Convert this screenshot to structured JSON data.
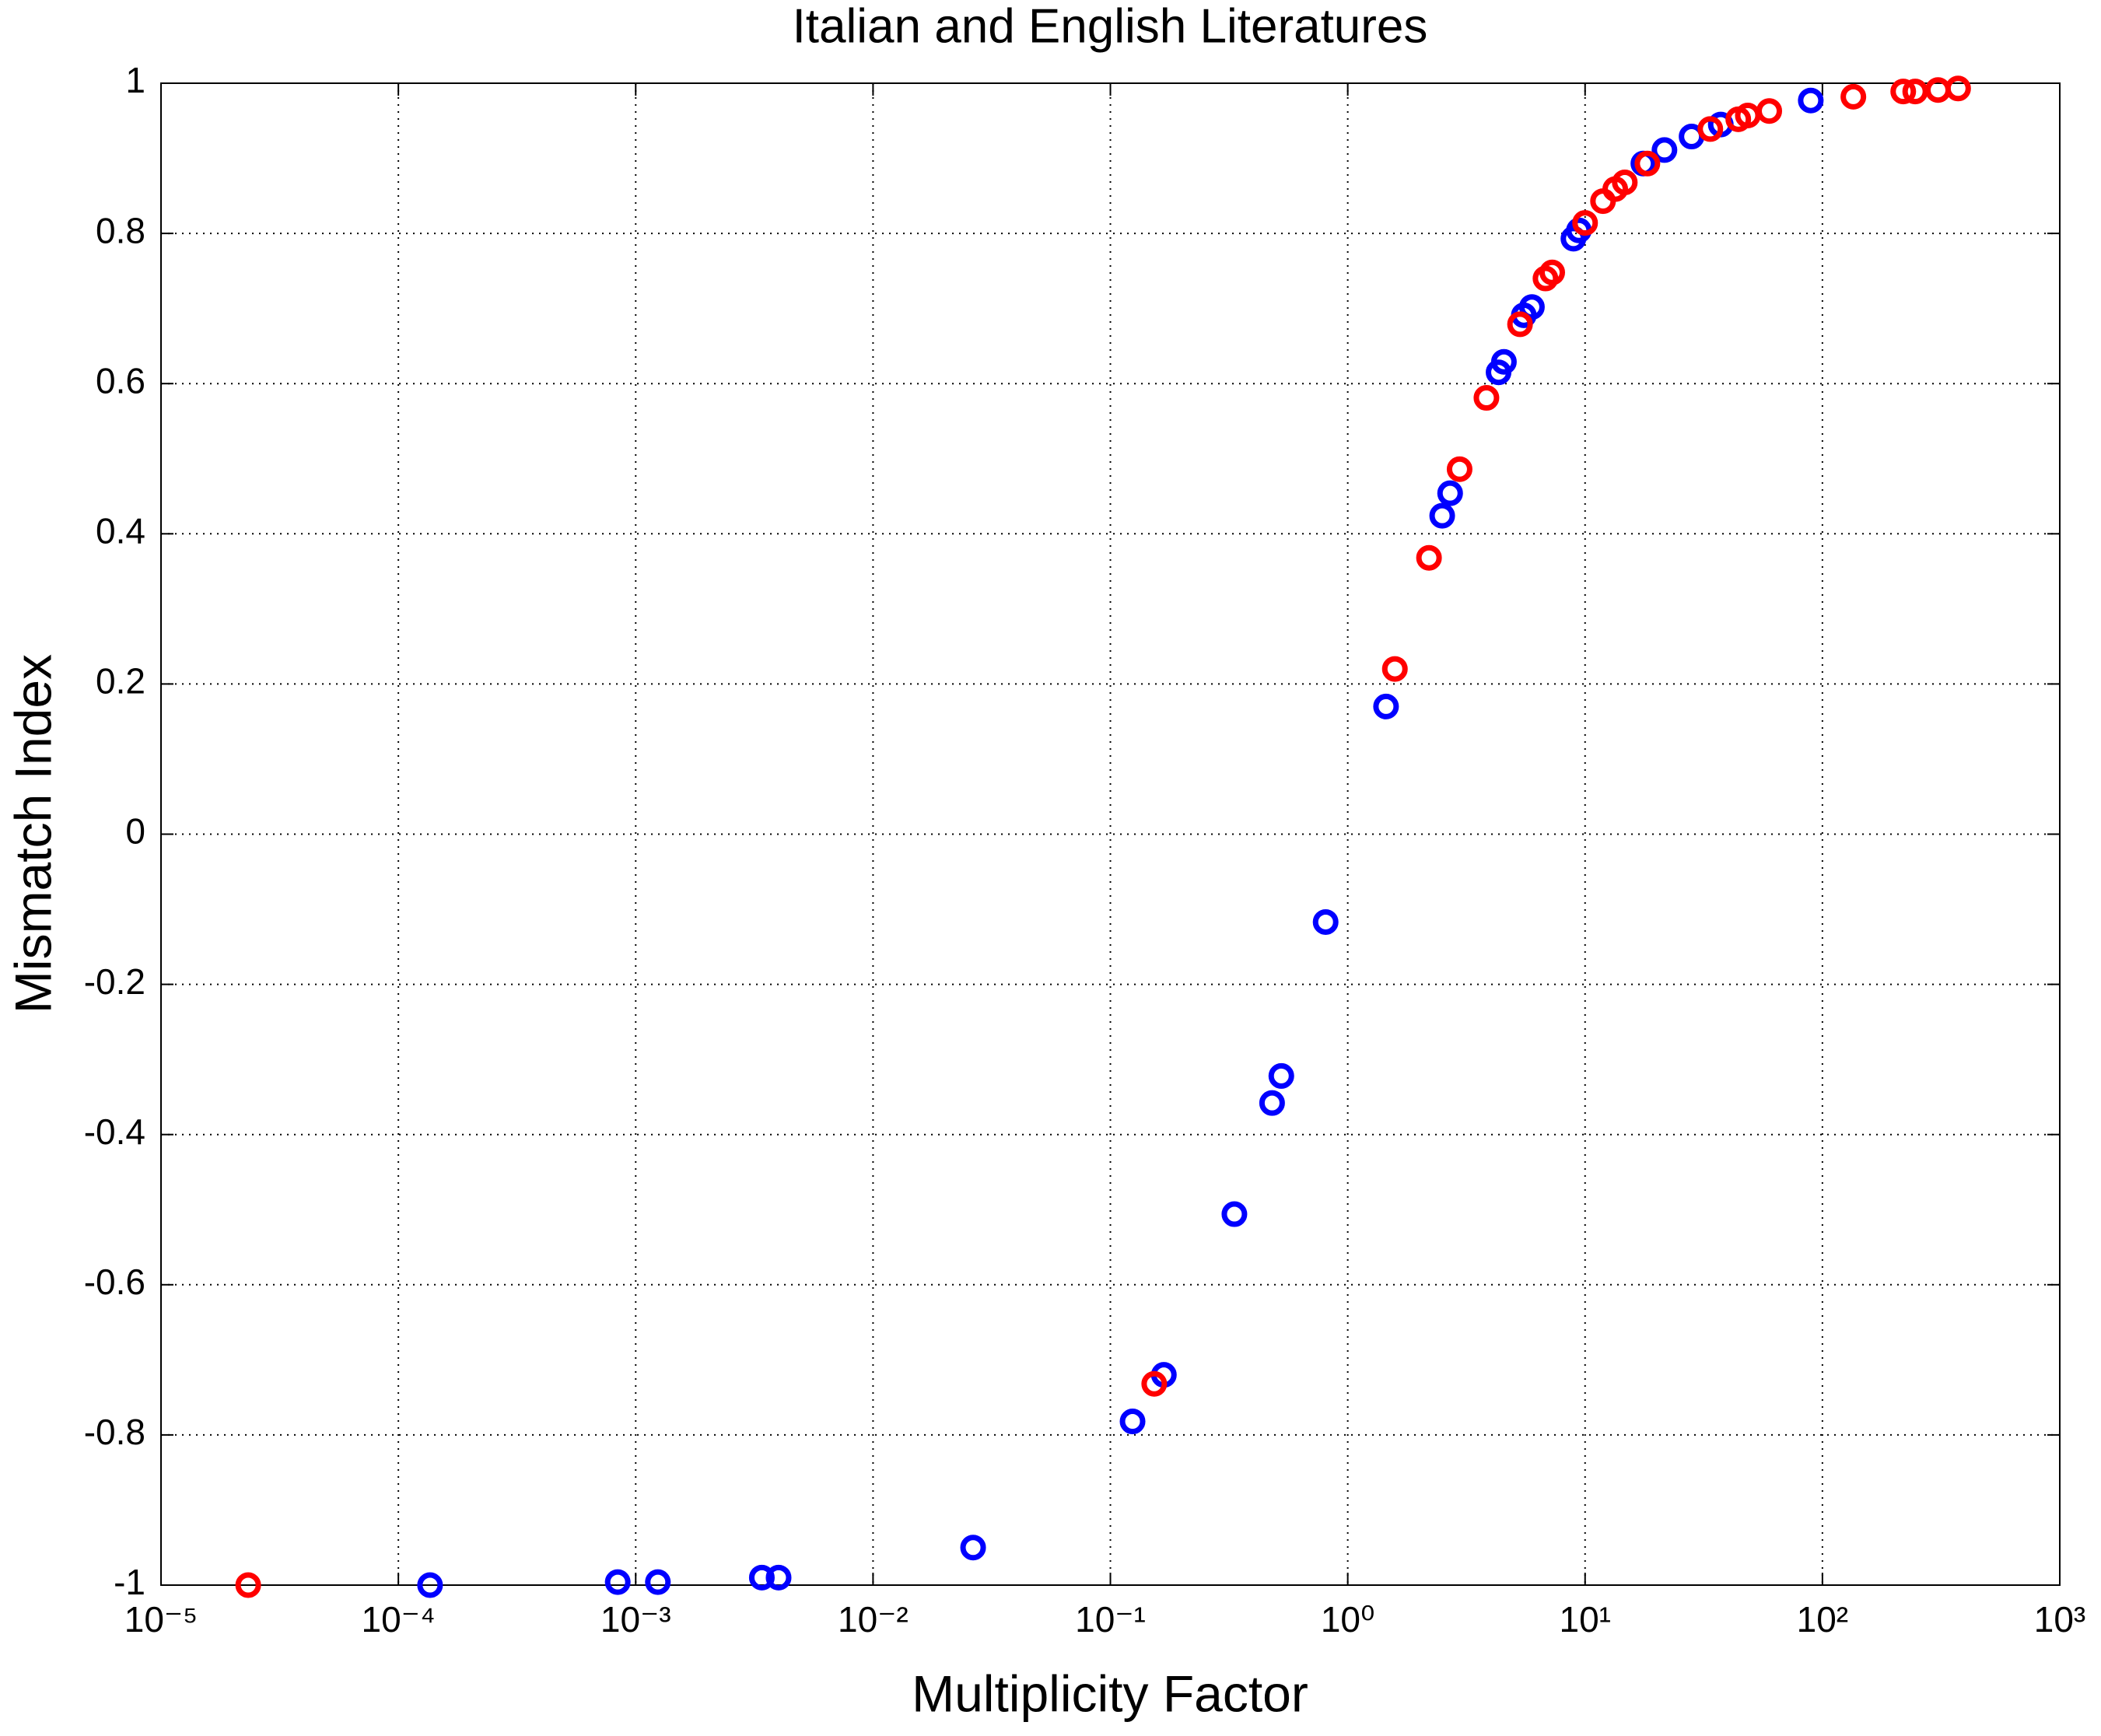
{
  "chart_data": {
    "type": "scatter",
    "title": "Italian and English Literatures",
    "xlabel": "Multiplicity Factor",
    "ylabel": "Mismatch Index",
    "xscale": "log",
    "grid": true,
    "xlim": [
      1e-05,
      1000
    ],
    "xticks": [
      {
        "value": 1e-05,
        "label": "10⁻⁵"
      },
      {
        "value": 0.0001,
        "label": "10⁻⁴"
      },
      {
        "value": 0.001,
        "label": "10⁻³"
      },
      {
        "value": 0.01,
        "label": "10⁻²"
      },
      {
        "value": 0.1,
        "label": "10⁻¹"
      },
      {
        "value": 1,
        "label": "10⁰"
      },
      {
        "value": 10,
        "label": "10¹"
      },
      {
        "value": 100,
        "label": "10²"
      },
      {
        "value": 1000,
        "label": "10³"
      }
    ],
    "ylim": [
      -1,
      1
    ],
    "yticks": [
      -1,
      -0.8,
      -0.6,
      -0.4,
      -0.2,
      0,
      0.2,
      0.4,
      0.6,
      0.8,
      1
    ],
    "series": [
      {
        "color": "#0000ff",
        "x": [
          0.000136,
          0.00084,
          0.00124,
          0.0034,
          0.004,
          0.0264,
          0.124,
          0.168,
          0.333,
          0.48,
          0.525,
          0.807,
          1.45,
          2.5,
          2.7,
          4.32,
          4.55,
          5.52,
          5.97,
          8.93,
          9.42,
          17.6,
          21.6,
          28.1,
          37.3,
          89.3
        ],
        "y": [
          -1,
          -0.996,
          -0.996,
          -0.99,
          -0.99,
          -0.95,
          -0.782,
          -0.72,
          -0.506,
          -0.358,
          -0.322,
          -0.117,
          0.17,
          0.424,
          0.454,
          0.615,
          0.629,
          0.691,
          0.702,
          0.793,
          0.804,
          0.893,
          0.911,
          0.929,
          0.945,
          0.977
        ]
      },
      {
        "color": "#ff0000",
        "x": [
          2.33e-05,
          0.153,
          1.58,
          2.2,
          2.96,
          3.84,
          5.32,
          6.81,
          7.27,
          10,
          11.9,
          13.4,
          14.7,
          18.3,
          33.7,
          44.2,
          48.5,
          59.7,
          135,
          219,
          246,
          307,
          373
        ],
        "y": [
          -1,
          -0.732,
          0.22,
          0.368,
          0.486,
          0.581,
          0.679,
          0.74,
          0.748,
          0.814,
          0.843,
          0.859,
          0.868,
          0.893,
          0.939,
          0.952,
          0.957,
          0.963,
          0.982,
          0.989,
          0.989,
          0.991,
          0.993
        ]
      }
    ]
  }
}
